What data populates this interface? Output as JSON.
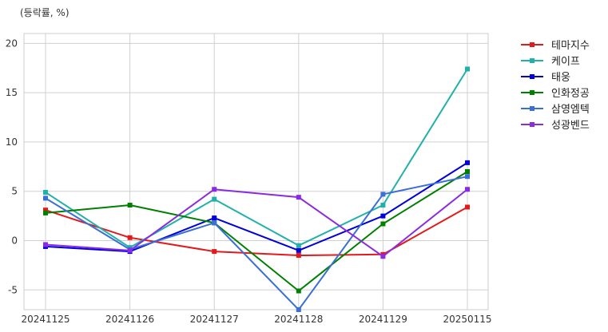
{
  "chart_data": {
    "type": "line",
    "unit_label": "(등락률, %)",
    "categories": [
      "20241125",
      "20241126",
      "20241127",
      "20241128",
      "20241129",
      "20250115"
    ],
    "ylim": [
      -7,
      21
    ],
    "yticks": [
      -5,
      0,
      5,
      10,
      15,
      20
    ],
    "grid": true,
    "legend_position": "outside-top-right",
    "series": [
      {
        "name": "테마지수",
        "color": "#e31a1c",
        "values": [
          3.1,
          0.3,
          -1.1,
          -1.5,
          -1.4,
          3.4
        ]
      },
      {
        "name": "케이프",
        "color": "#20b2aa",
        "values": [
          4.9,
          -0.7,
          4.2,
          -0.5,
          3.6,
          17.4
        ]
      },
      {
        "name": "태웅",
        "color": "#0000dd",
        "values": [
          -0.6,
          -1.1,
          2.3,
          -1.0,
          2.5,
          7.9
        ]
      },
      {
        "name": "인화정공",
        "color": "#008000",
        "values": [
          2.8,
          3.6,
          1.8,
          -5.1,
          1.7,
          7.0
        ]
      },
      {
        "name": "삼영엠텍",
        "color": "#3a6fd8",
        "values": [
          4.3,
          -0.9,
          1.8,
          -7.0,
          4.7,
          6.5
        ]
      },
      {
        "name": "성광벤드",
        "color": "#8a2be2",
        "values": [
          -0.4,
          -1.0,
          5.2,
          4.4,
          -1.6,
          5.2
        ]
      }
    ]
  }
}
